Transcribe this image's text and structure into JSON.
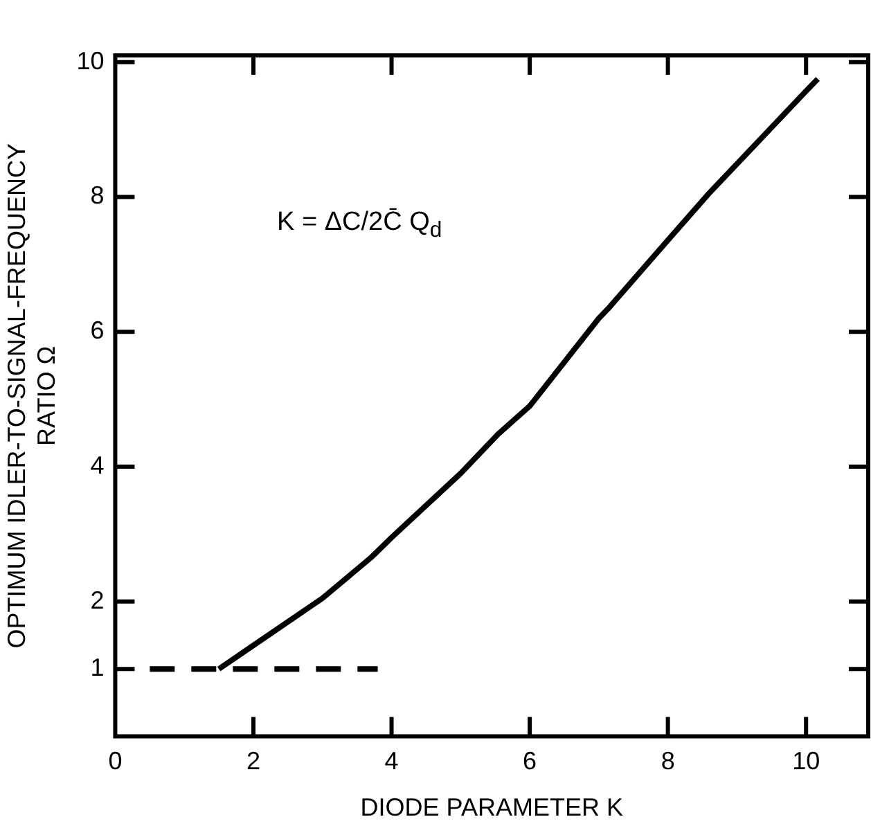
{
  "chart_data": {
    "type": "line",
    "xlabel": "DIODE PARAMETER K",
    "ylabel": "OPTIMUM IDLER-TO-SIGNAL-FREQUENCY\nRATIO Ω",
    "annotations": [
      "K = ΔC/2C̄ Q$_{d}$"
    ],
    "xlim": [
      0,
      10.9
    ],
    "xticks": [
      0,
      2,
      4,
      6,
      8,
      10
    ],
    "ylim": [
      0,
      10.1
    ],
    "yticks": [
      1,
      2,
      4,
      6,
      8,
      10
    ],
    "grid": false,
    "legend": false,
    "marker": "none",
    "series": [
      {
        "color": "#000000",
        "line_style": "solid",
        "x": [
          1.5,
          2,
          3,
          3.7,
          4,
          5,
          5.54,
          6,
          7,
          7.15,
          8,
          8.6,
          9,
          10,
          10.17
        ],
        "values": [
          1,
          1.35,
          2.05,
          2.65,
          2.95,
          3.9,
          4.48,
          4.9,
          6.2,
          6.36,
          7.36,
          8.06,
          8.49,
          9.57,
          9.75
        ]
      },
      {
        "color": "#000000",
        "line_style": "dashed",
        "x": [
          0.5,
          3.8
        ],
        "values": [
          1,
          1
        ]
      }
    ]
  }
}
